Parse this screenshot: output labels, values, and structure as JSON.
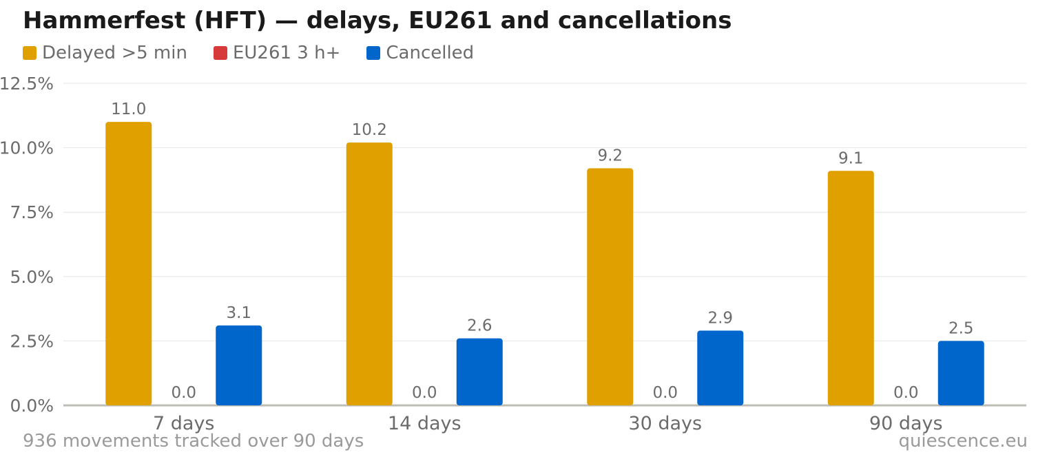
{
  "title": "Hammerfest (HFT) — delays, EU261 and cancellations",
  "legend": [
    {
      "label": "Delayed >5 min",
      "color": "#dfa000"
    },
    {
      "label": "EU261 3 h+",
      "color": "#d63a3a"
    },
    {
      "label": "Cancelled",
      "color": "#0066cc"
    }
  ],
  "footer": {
    "left": "936 movements tracked over 90 days",
    "right": "quiescence.eu"
  },
  "chart_data": {
    "type": "bar",
    "categories": [
      "7 days",
      "14 days",
      "30 days",
      "90 days"
    ],
    "series": [
      {
        "name": "Delayed >5 min",
        "color": "#dfa000",
        "values": [
          11.0,
          10.2,
          9.2,
          9.1
        ]
      },
      {
        "name": "EU261 3 h+",
        "color": "#d63a3a",
        "values": [
          0.0,
          0.0,
          0.0,
          0.0
        ]
      },
      {
        "name": "Cancelled",
        "color": "#0066cc",
        "values": [
          3.1,
          2.6,
          2.9,
          2.5
        ]
      }
    ],
    "ylim": [
      0,
      12.5
    ],
    "yticks": [
      "0.0%",
      "2.5%",
      "5.0%",
      "7.5%",
      "10.0%",
      "12.5%"
    ],
    "ytick_values": [
      0,
      2.5,
      5.0,
      7.5,
      10.0,
      12.5
    ],
    "grid": true,
    "legend_position": "top-left"
  }
}
